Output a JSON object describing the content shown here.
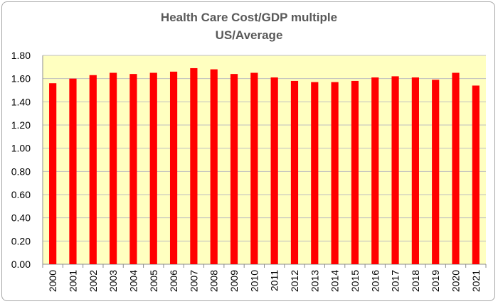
{
  "chart_data": {
    "type": "bar",
    "title": "Health Care Cost/GDP multiple",
    "subtitle": "US/Average",
    "xlabel": "",
    "ylabel": "",
    "categories": [
      "2000",
      "2001",
      "2002",
      "2003",
      "2004",
      "2005",
      "2006",
      "2007",
      "2008",
      "2009",
      "2010",
      "2011",
      "2012",
      "2013",
      "2014",
      "2015",
      "2016",
      "2017",
      "2018",
      "2019",
      "2020",
      "2021"
    ],
    "series": [
      {
        "values": [
          1.56,
          1.6,
          1.63,
          1.65,
          1.64,
          1.65,
          1.66,
          1.69,
          1.68,
          1.64,
          1.65,
          1.61,
          1.58,
          1.57,
          1.57,
          1.58,
          1.61,
          1.62,
          1.61,
          1.59,
          1.65,
          1.54
        ],
        "color": "#ff0000"
      }
    ],
    "ylim": [
      0,
      1.8
    ],
    "yticks": [
      "0.00",
      "0.20",
      "0.40",
      "0.60",
      "0.80",
      "1.00",
      "1.20",
      "1.40",
      "1.60",
      "1.80"
    ],
    "grid": true,
    "plot_background": "#ffffc0",
    "gridline_color": "#bfbfbf"
  }
}
